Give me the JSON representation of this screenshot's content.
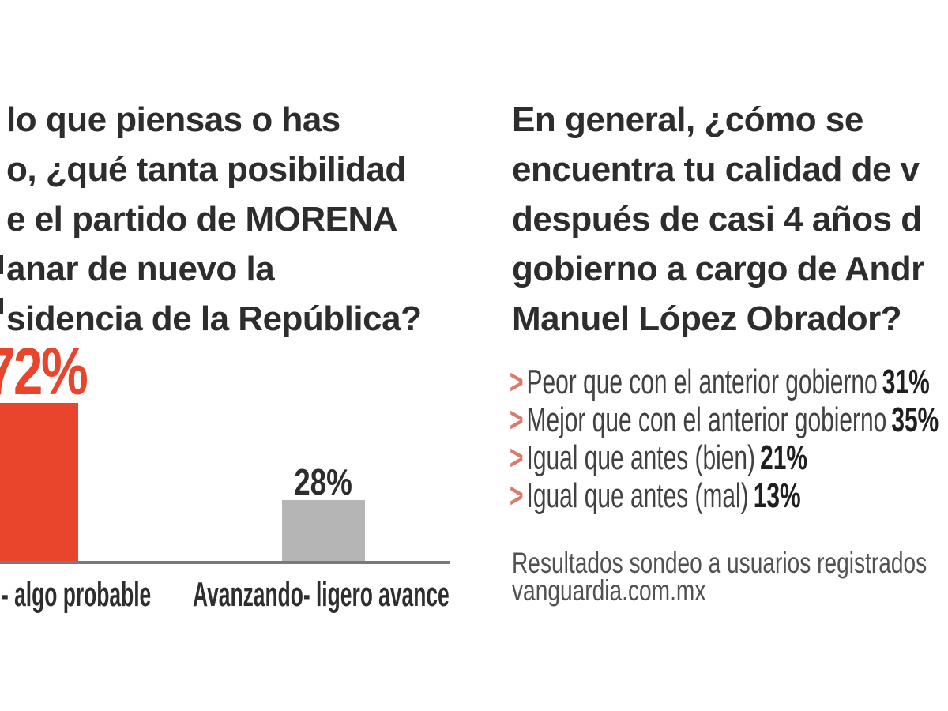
{
  "page": {
    "background": "#ffffff"
  },
  "left_panel": {
    "question_lines": [
      "lo que piensas o has",
      "o, ¿qué tanta posibilidad",
      "e el partido de MORENA",
      "anar de nuevo la",
      "sidencia de la República?"
    ]
  },
  "right_panel": {
    "question_lines": [
      "En general, ¿cómo se",
      "encuentra tu calidad de v",
      "después de casi 4 años d",
      "gobierno a cargo de Andr",
      "Manuel López Obrador?"
    ],
    "marker_char": ">",
    "items": [
      {
        "label": "Peor que con el anterior gobierno",
        "value": "31%"
      },
      {
        "label": "Mejor que con el anterior gobierno",
        "value": "35%"
      },
      {
        "label": "Igual que antes (bien)",
        "value": "21%"
      },
      {
        "label": "Igual que antes (mal)",
        "value": "13%"
      }
    ],
    "footer_lines": [
      "Resultados sondeo a usuarios registrados",
      "vanguardia.com.mx"
    ]
  },
  "chart_data": [
    {
      "type": "bar",
      "categories": [
        "- algo probable",
        "Avanzando- ligero avance"
      ],
      "values": [
        72,
        28
      ],
      "value_labels": [
        "72%",
        "28%"
      ],
      "bar_colors": [
        "#e8452c",
        "#b5b5b6"
      ],
      "title": "",
      "xlabel": "",
      "ylabel": "",
      "ylim": [
        0,
        100
      ],
      "grid": false,
      "legend": "none"
    },
    {
      "type": "table",
      "categories": [
        "Peor que con el anterior gobierno",
        "Mejor que con el anterior gobierno",
        "Igual que antes (bien)",
        "Igual que antes (mal)"
      ],
      "values": [
        31,
        35,
        21,
        13
      ]
    }
  ],
  "colors": {
    "accent_red": "#e8452c",
    "marker_salmon": "#d97b6c",
    "bar_gray": "#b5b5b6",
    "axis_line_gray": "#7a7a7a",
    "heading_text": "#2d2d2d",
    "list_text": "#414141",
    "value_text": "#1f1f1f",
    "footer_text": "#515151"
  }
}
